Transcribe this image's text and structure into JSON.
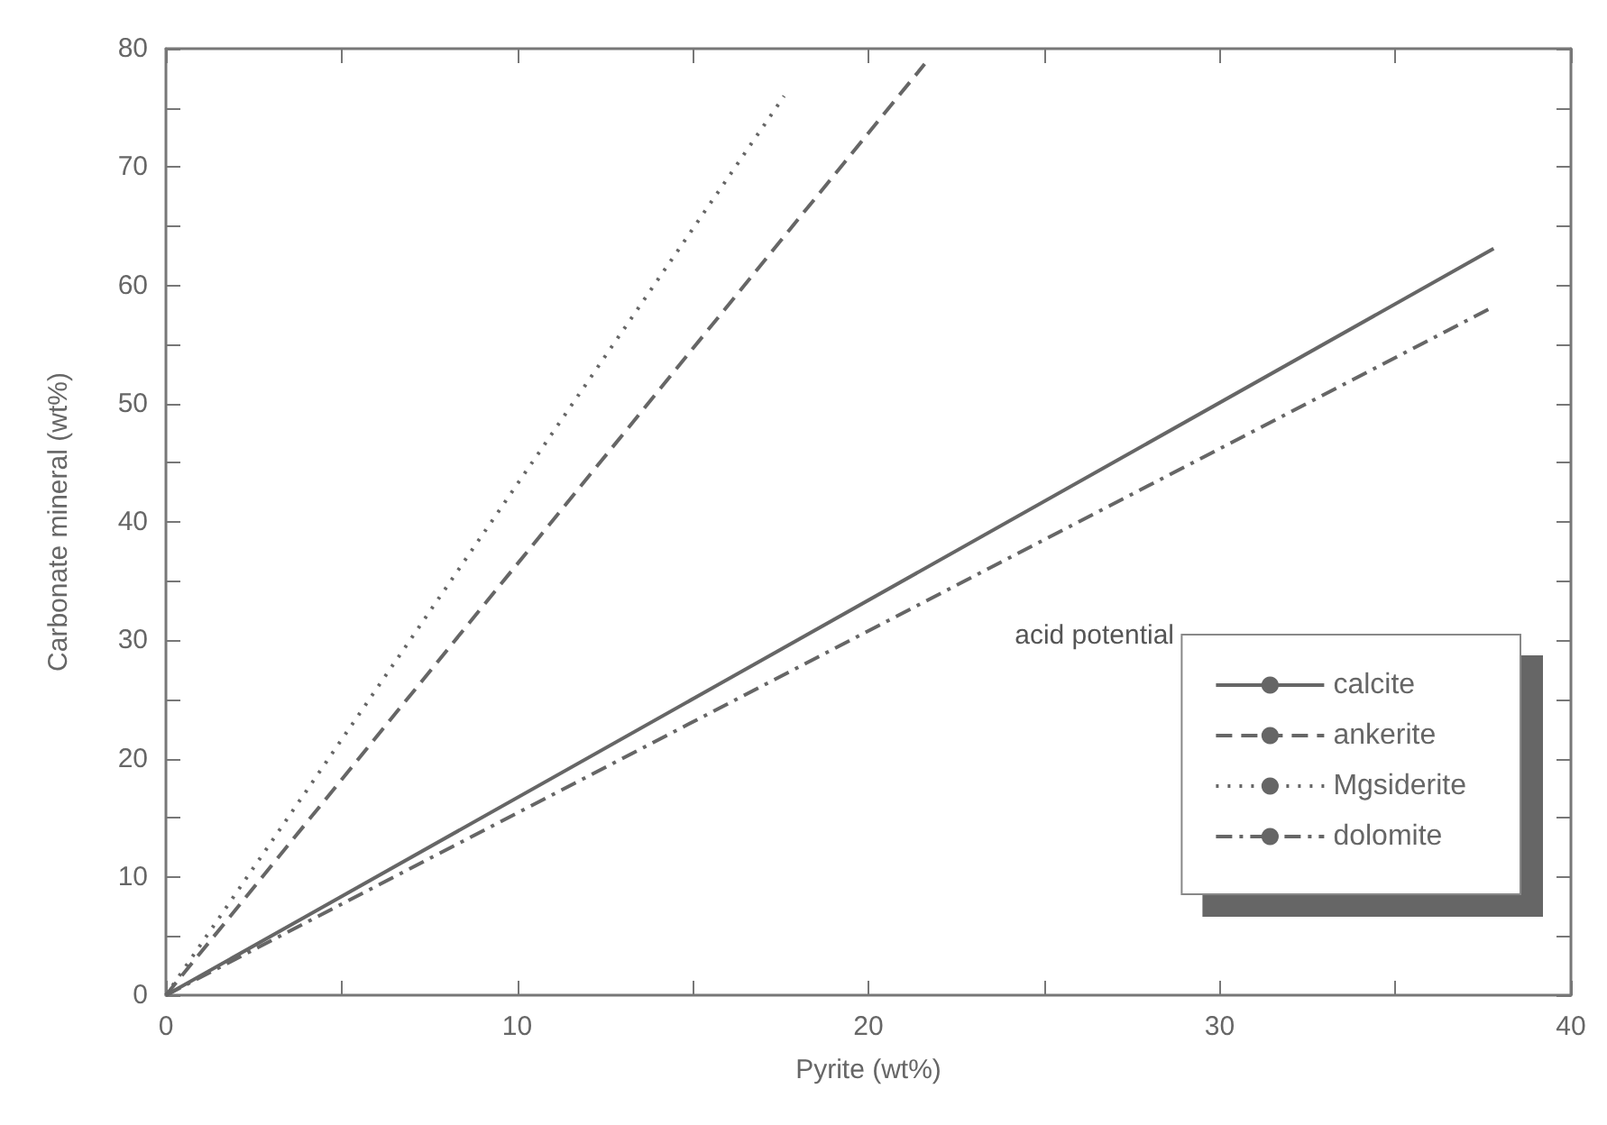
{
  "chart_data": {
    "type": "line",
    "xlabel": "Pyrite (wt%)",
    "ylabel": "Carbonate mineral (wt%)",
    "annotations": [
      "acid potential"
    ],
    "xlim": [
      0,
      40
    ],
    "xticks": [
      0,
      {
        "value": 5,
        "label": null
      },
      10,
      {
        "value": 15,
        "label": null
      },
      20,
      {
        "value": 25,
        "label": null
      },
      30,
      {
        "value": 35,
        "label": null
      },
      40
    ],
    "ylim": [
      0,
      80
    ],
    "yticks": [
      0,
      {
        "value": 5,
        "label": null
      },
      10,
      {
        "value": 15,
        "label": null
      },
      20,
      {
        "value": 25,
        "label": null
      },
      30,
      {
        "value": 35,
        "label": null
      },
      40,
      {
        "value": 45,
        "label": null
      },
      50,
      {
        "value": 55,
        "label": null
      },
      60,
      {
        "value": 65,
        "label": null
      },
      70,
      {
        "value": 75,
        "label": null
      },
      80
    ],
    "grid": false,
    "legend": "bottom right",
    "marker": "none",
    "series": [
      {
        "name": "calcite",
        "color": "#666666",
        "line_style": "solid",
        "x": [
          0,
          37.8
        ],
        "values": [
          0,
          63.1
        ]
      },
      {
        "name": "ankerite",
        "color": "#666666",
        "line_style": "dashed",
        "x": [
          0,
          21.6
        ],
        "values": [
          0,
          78.7
        ]
      },
      {
        "name": "Mgsiderite",
        "color": "#666666",
        "line_style": "dotted",
        "x": [
          0,
          17.6
        ],
        "values": [
          0,
          76
        ]
      },
      {
        "name": "dolomite",
        "color": "#666666",
        "line_style": "dashdot",
        "x": [
          0,
          37.8
        ],
        "values": [
          0,
          58.2
        ]
      }
    ]
  }
}
